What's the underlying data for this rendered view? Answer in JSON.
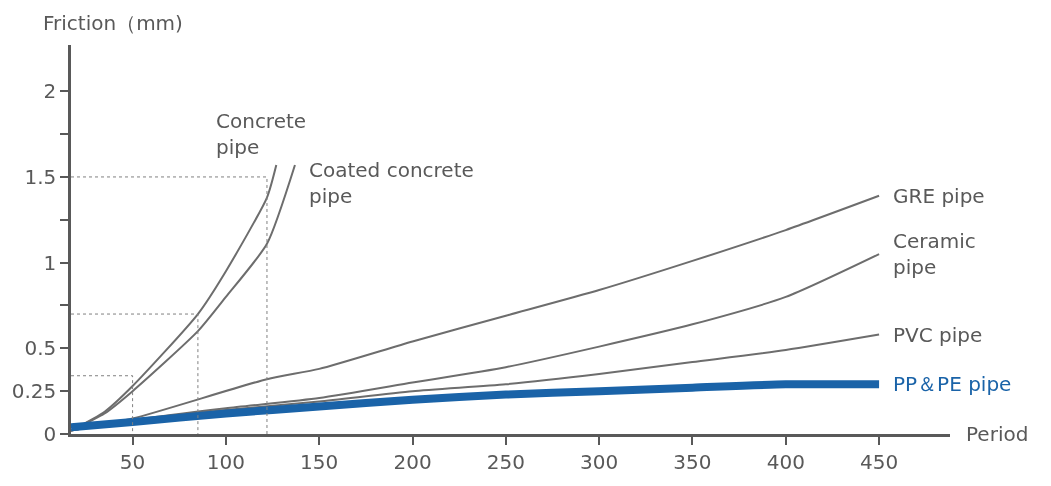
{
  "chart_data": {
    "type": "line",
    "xlabel": "Period",
    "ylabel": "Friction（mm)",
    "xlim": [
      17,
      488
    ],
    "xticks": [
      50,
      100,
      150,
      200,
      250,
      300,
      350,
      400,
      450
    ],
    "ylim": [
      0,
      2.27
    ],
    "yticks": [
      0,
      0.25,
      0.5,
      {
        "value": 0.75,
        "label": null
      },
      1,
      {
        "value": 1.25,
        "label": null
      },
      1.5,
      {
        "value": 1.75,
        "label": null
      },
      2
    ],
    "legend": false,
    "marker": "none",
    "series": [
      {
        "name": "Concrete pipe",
        "color": "#6d6d6d",
        "x": [
          17,
          35,
          50,
          85,
          100,
          122,
          127
        ],
        "values": [
          0.02,
          0.13,
          0.28,
          0.7,
          0.95,
          1.38,
          1.57
        ]
      },
      {
        "name": "Coated concrete pipe",
        "color": "#6d6d6d",
        "x": [
          17,
          35,
          50,
          85,
          100,
          122,
          137
        ],
        "values": [
          0.02,
          0.12,
          0.25,
          0.6,
          0.8,
          1.11,
          1.57
        ]
      },
      {
        "name": "GRE pipe",
        "color": "#6d6d6d",
        "x": [
          17,
          50,
          122,
          150,
          200,
          250,
          300,
          350,
          400,
          450
        ],
        "values": [
          0.02,
          0.09,
          0.32,
          0.38,
          0.54,
          0.69,
          0.84,
          1.01,
          1.19,
          1.39
        ]
      },
      {
        "name": "Ceramic pipe",
        "color": "#6d6d6d",
        "x": [
          17,
          50,
          100,
          150,
          200,
          250,
          300,
          350,
          400,
          450
        ],
        "values": [
          0.02,
          0.08,
          0.15,
          0.21,
          0.3,
          0.39,
          0.51,
          0.64,
          0.8,
          1.05
        ]
      },
      {
        "name": "PVC pipe",
        "color": "#6d6d6d",
        "x": [
          17,
          50,
          100,
          150,
          200,
          250,
          300,
          350,
          400,
          450
        ],
        "values": [
          0.02,
          0.08,
          0.14,
          0.19,
          0.25,
          0.29,
          0.35,
          0.42,
          0.49,
          0.58
        ]
      },
      {
        "name": "PP＆PE pipe",
        "color": "#1a63a8",
        "x": [
          17,
          50,
          100,
          150,
          200,
          250,
          300,
          350,
          400,
          450
        ],
        "values": [
          0.04,
          0.07,
          0.12,
          0.16,
          0.2,
          0.23,
          0.25,
          0.27,
          0.29,
          0.29
        ]
      },
      {
        "color": "#808080",
        "line_style": "dotted",
        "x": [
          17,
          50,
          50
        ],
        "values": [
          0.34,
          0.34,
          0
        ]
      },
      {
        "color": "#808080",
        "line_style": "dotted",
        "x": [
          17,
          85,
          85
        ],
        "values": [
          0.7,
          0.7,
          0
        ]
      },
      {
        "color": "#808080",
        "line_style": "dotted",
        "x": [
          17,
          122,
          122
        ],
        "values": [
          1.5,
          1.5,
          0
        ]
      }
    ]
  }
}
